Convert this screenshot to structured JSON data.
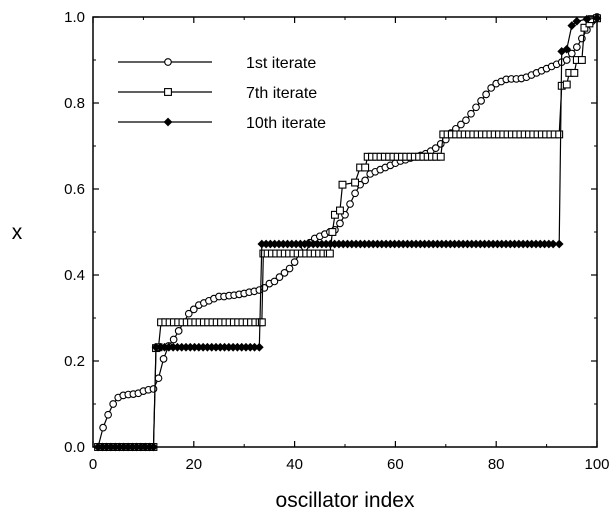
{
  "chart_data": {
    "type": "line",
    "title": "",
    "xlabel": "oscillator index",
    "ylabel": "x",
    "xlim": [
      0,
      100
    ],
    "ylim": [
      0.0,
      1.0
    ],
    "x_ticks": [
      "0",
      "20",
      "40",
      "60",
      "80",
      "100"
    ],
    "y_ticks": [
      "0.0",
      "0.2",
      "0.4",
      "0.6",
      "0.8",
      "1.0"
    ],
    "grid": false,
    "legend_position": "top-left",
    "series": [
      {
        "name": "1st iterate",
        "marker": "open-circle",
        "points": [
          [
            1,
            0.0
          ],
          [
            2,
            0.045
          ],
          [
            3,
            0.075
          ],
          [
            4,
            0.1
          ],
          [
            5,
            0.115
          ],
          [
            6,
            0.12
          ],
          [
            7,
            0.122
          ],
          [
            8,
            0.123
          ],
          [
            9,
            0.125
          ],
          [
            10,
            0.13
          ],
          [
            11,
            0.133
          ],
          [
            12,
            0.135
          ],
          [
            13,
            0.16
          ],
          [
            14,
            0.205
          ],
          [
            15,
            0.235
          ],
          [
            16,
            0.25
          ],
          [
            17,
            0.27
          ],
          [
            18,
            0.29
          ],
          [
            19,
            0.31
          ],
          [
            20,
            0.32
          ],
          [
            21,
            0.33
          ],
          [
            22,
            0.335
          ],
          [
            23,
            0.34
          ],
          [
            24,
            0.345
          ],
          [
            25,
            0.35
          ],
          [
            26,
            0.35
          ],
          [
            27,
            0.352
          ],
          [
            28,
            0.353
          ],
          [
            29,
            0.355
          ],
          [
            30,
            0.357
          ],
          [
            31,
            0.36
          ],
          [
            32,
            0.362
          ],
          [
            33,
            0.365
          ],
          [
            34,
            0.37
          ],
          [
            35,
            0.38
          ],
          [
            36,
            0.385
          ],
          [
            37,
            0.395
          ],
          [
            38,
            0.405
          ],
          [
            39,
            0.415
          ],
          [
            40,
            0.43
          ],
          [
            41,
            0.45
          ],
          [
            42,
            0.465
          ],
          [
            43,
            0.475
          ],
          [
            44,
            0.485
          ],
          [
            45,
            0.49
          ],
          [
            46,
            0.495
          ],
          [
            47,
            0.5
          ],
          [
            48,
            0.505
          ],
          [
            49,
            0.52
          ],
          [
            50,
            0.54
          ],
          [
            51,
            0.565
          ],
          [
            52,
            0.59
          ],
          [
            53,
            0.61
          ],
          [
            54,
            0.62
          ],
          [
            55,
            0.635
          ],
          [
            56,
            0.64
          ],
          [
            57,
            0.645
          ],
          [
            58,
            0.65
          ],
          [
            59,
            0.655
          ],
          [
            60,
            0.66
          ],
          [
            61,
            0.665
          ],
          [
            62,
            0.668
          ],
          [
            63,
            0.672
          ],
          [
            64,
            0.675
          ],
          [
            65,
            0.678
          ],
          [
            66,
            0.682
          ],
          [
            67,
            0.688
          ],
          [
            68,
            0.695
          ],
          [
            69,
            0.705
          ],
          [
            70,
            0.715
          ],
          [
            71,
            0.73
          ],
          [
            72,
            0.74
          ],
          [
            73,
            0.75
          ],
          [
            74,
            0.76
          ],
          [
            75,
            0.775
          ],
          [
            76,
            0.79
          ],
          [
            77,
            0.805
          ],
          [
            78,
            0.82
          ],
          [
            79,
            0.835
          ],
          [
            80,
            0.845
          ],
          [
            81,
            0.85
          ],
          [
            82,
            0.855
          ],
          [
            83,
            0.856
          ],
          [
            84,
            0.856
          ],
          [
            85,
            0.857
          ],
          [
            86,
            0.86
          ],
          [
            87,
            0.865
          ],
          [
            88,
            0.87
          ],
          [
            89,
            0.875
          ],
          [
            90,
            0.88
          ],
          [
            91,
            0.885
          ],
          [
            92,
            0.89
          ],
          [
            93,
            0.895
          ],
          [
            94,
            0.9
          ],
          [
            95,
            0.915
          ],
          [
            96,
            0.93
          ],
          [
            97,
            0.95
          ],
          [
            98,
            0.97
          ],
          [
            99,
            0.99
          ],
          [
            100,
            1.0
          ]
        ]
      },
      {
        "name": "7th iterate",
        "marker": "open-square",
        "points": [
          [
            1,
            0.0
          ],
          [
            12,
            0.0
          ],
          [
            12.5,
            0.23
          ],
          [
            13,
            0.232
          ],
          [
            13.5,
            0.29
          ],
          [
            33.5,
            0.29
          ],
          [
            33.8,
            0.45
          ],
          [
            47,
            0.45
          ],
          [
            47.5,
            0.5
          ],
          [
            48,
            0.54
          ],
          [
            49,
            0.55
          ],
          [
            49.5,
            0.61
          ],
          [
            52,
            0.615
          ],
          [
            53,
            0.65
          ],
          [
            54,
            0.65
          ],
          [
            54.5,
            0.675
          ],
          [
            69,
            0.675
          ],
          [
            69.5,
            0.727
          ],
          [
            92.5,
            0.727
          ],
          [
            93,
            0.84
          ],
          [
            94,
            0.843
          ],
          [
            94.5,
            0.87
          ],
          [
            95.5,
            0.87
          ],
          [
            96,
            0.9
          ],
          [
            97,
            0.9
          ],
          [
            97.5,
            0.975
          ],
          [
            98.5,
            0.985
          ],
          [
            99,
            0.995
          ],
          [
            100,
            0.997
          ]
        ]
      },
      {
        "name": "10th iterate",
        "marker": "filled-diamond",
        "points": [
          [
            1,
            0.0
          ],
          [
            12,
            0.0
          ],
          [
            12.5,
            0.232
          ],
          [
            33,
            0.232
          ],
          [
            33.5,
            0.472
          ],
          [
            92.5,
            0.472
          ],
          [
            93,
            0.92
          ],
          [
            94,
            0.925
          ],
          [
            95,
            0.98
          ],
          [
            96,
            0.99
          ],
          [
            98,
            0.995
          ],
          [
            100,
            0.997
          ]
        ]
      }
    ]
  }
}
